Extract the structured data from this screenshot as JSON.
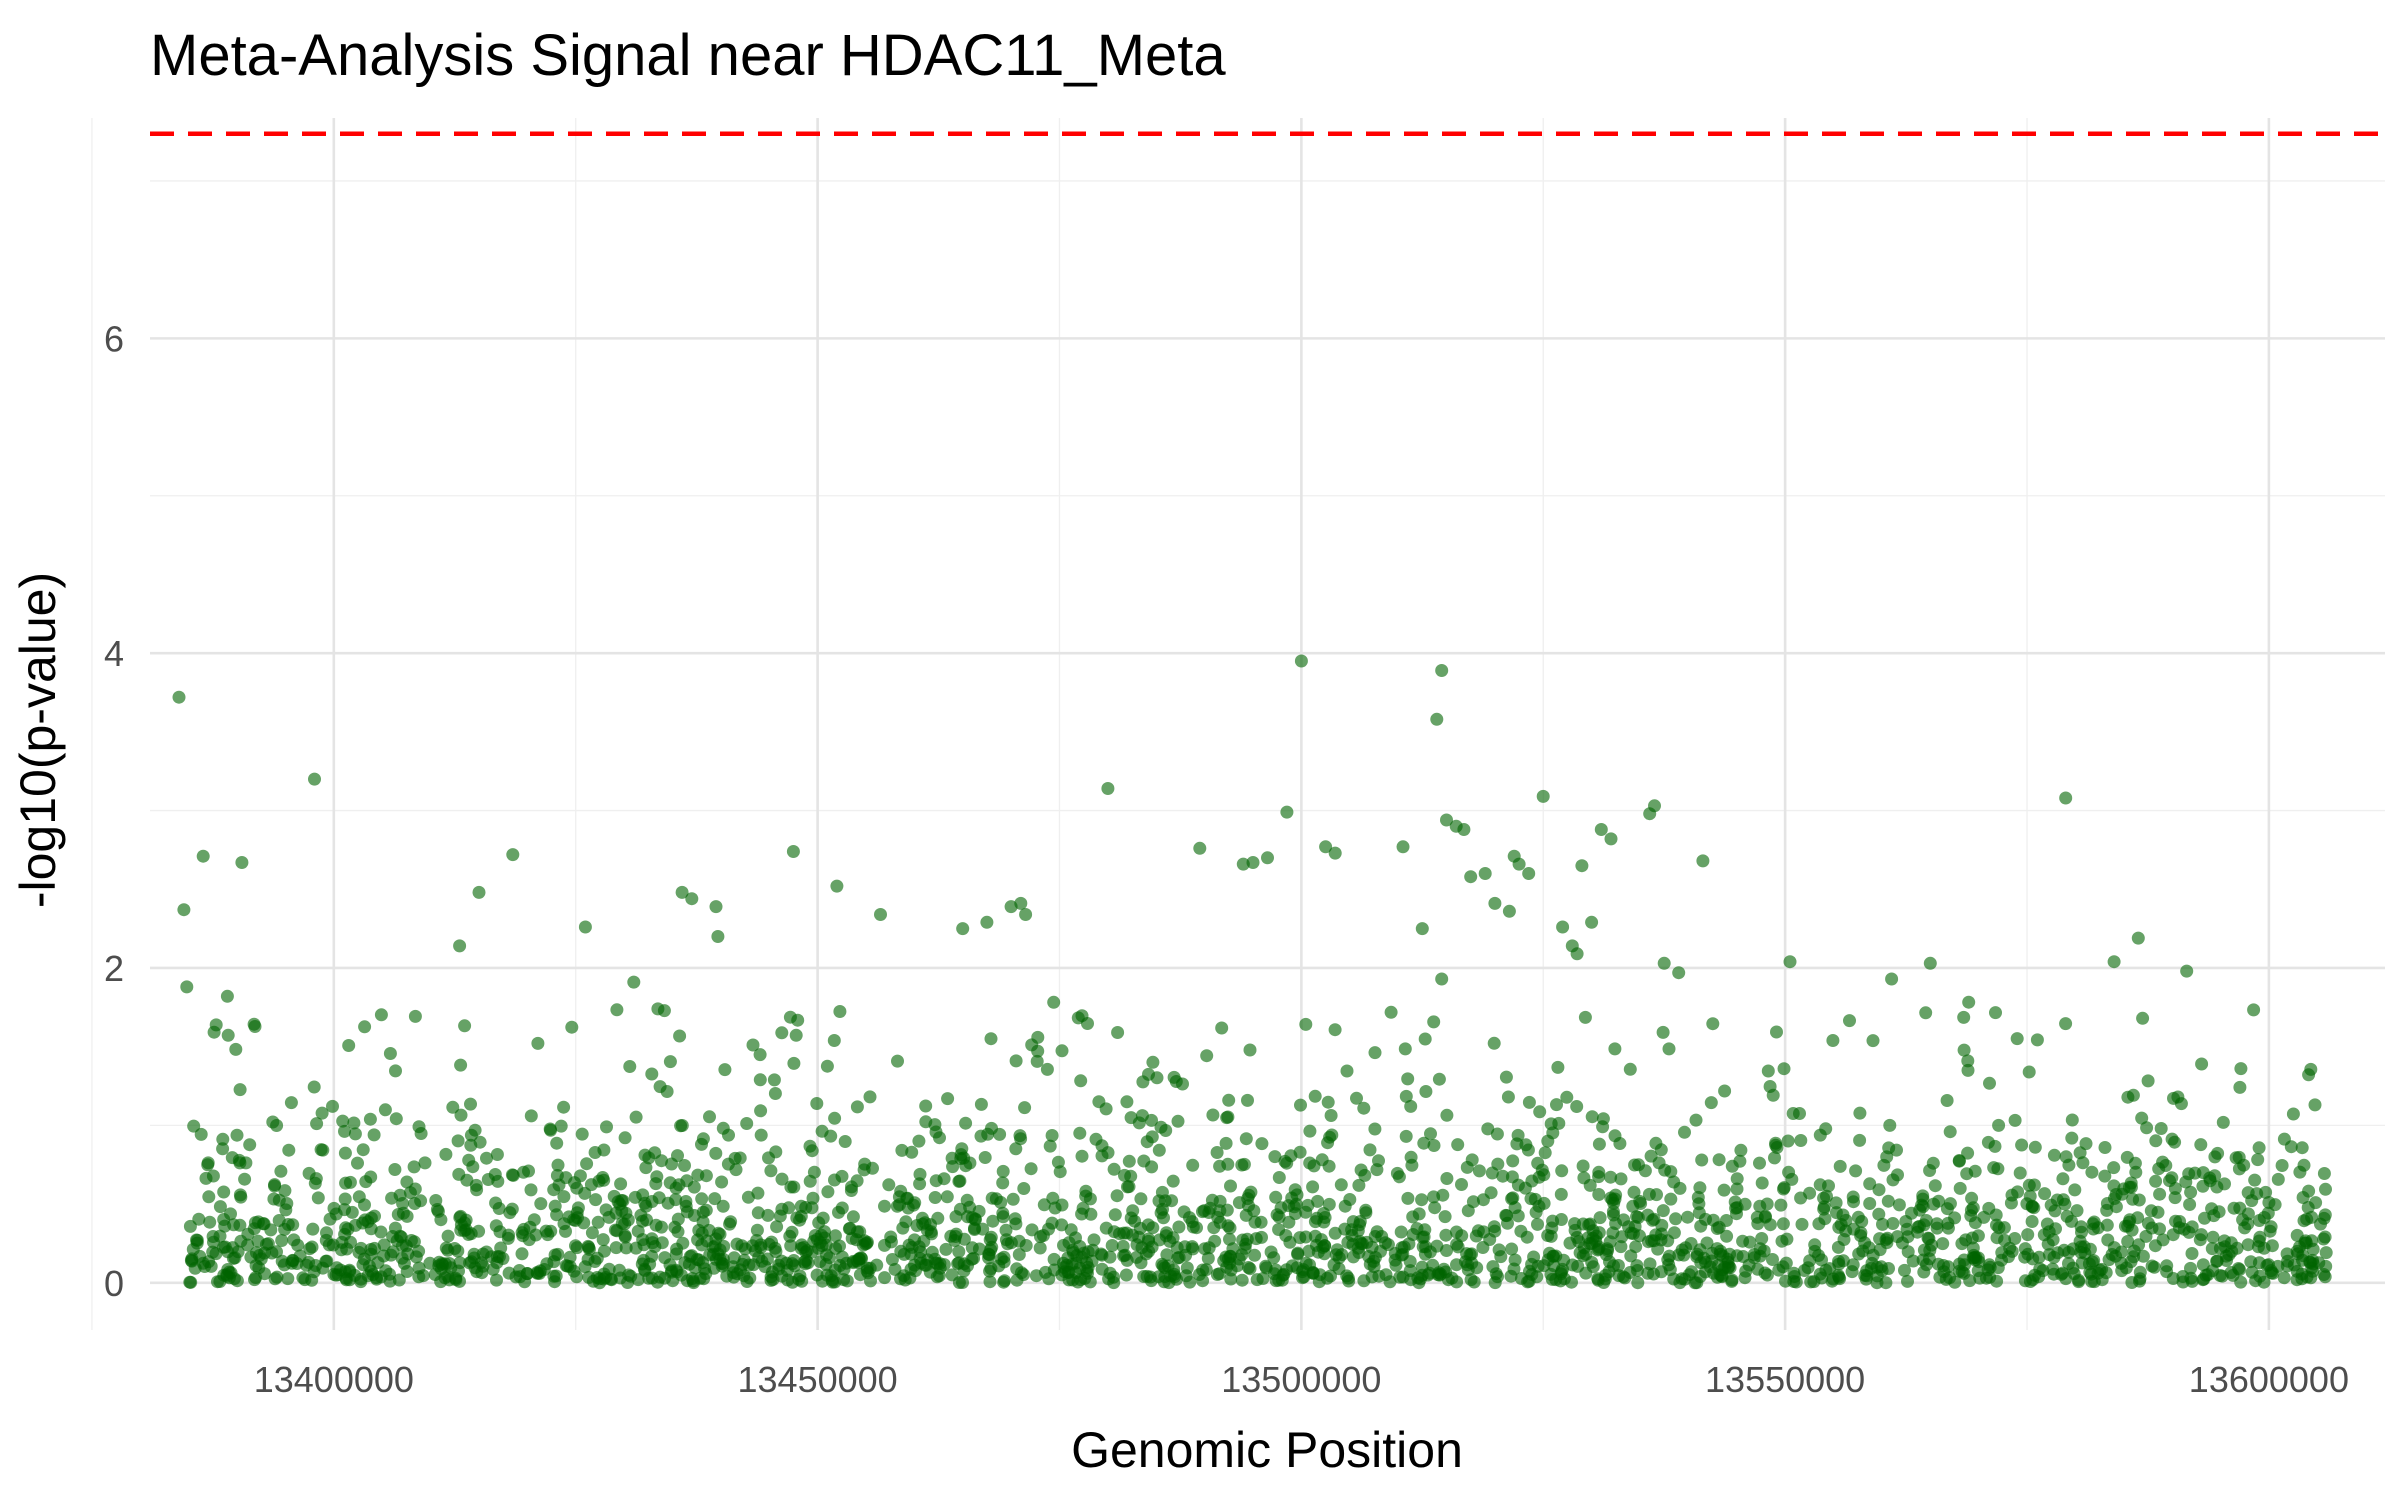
{
  "chart_data": {
    "type": "scatter",
    "title": "Meta-Analysis Signal near HDAC11_Meta",
    "xlabel": "Genomic Position",
    "ylabel": "-log10(p-value)",
    "xlim": [
      13381000,
      13612000
    ],
    "ylim": [
      -0.3,
      7.4
    ],
    "x_ticks": [
      13400000,
      13450000,
      13500000,
      13550000,
      13600000
    ],
    "x_tick_labels": [
      "13400000",
      "13450000",
      "13500000",
      "13550000",
      "13600000"
    ],
    "y_ticks": [
      0,
      2,
      4,
      6
    ],
    "y_tick_labels": [
      "0",
      "2",
      "4",
      "6"
    ],
    "grid": true,
    "legend": "none",
    "significance_threshold": {
      "value": 7.3,
      "color": "#ff0000",
      "style": "dashed"
    },
    "point_color": "#006400",
    "point_opacity": 0.6,
    "snp_range": [
      13385000,
      13606000
    ],
    "n_points_background": 2400,
    "highlighted_points": [
      [
        13384000,
        3.72
      ],
      [
        13384500,
        2.37
      ],
      [
        13386500,
        2.71
      ],
      [
        13390500,
        2.67
      ],
      [
        13384800,
        1.88
      ],
      [
        13389000,
        1.82
      ],
      [
        13398000,
        3.2
      ],
      [
        13418500,
        2.72
      ],
      [
        13415000,
        2.48
      ],
      [
        13413000,
        2.14
      ],
      [
        13426000,
        2.26
      ],
      [
        13436000,
        2.48
      ],
      [
        13437000,
        2.44
      ],
      [
        13439500,
        2.39
      ],
      [
        13439700,
        2.2
      ],
      [
        13431000,
        1.91
      ],
      [
        13447500,
        2.74
      ],
      [
        13452000,
        2.52
      ],
      [
        13456500,
        2.34
      ],
      [
        13465000,
        2.25
      ],
      [
        13467500,
        2.29
      ],
      [
        13470000,
        2.39
      ],
      [
        13471000,
        2.41
      ],
      [
        13471500,
        2.34
      ],
      [
        13480000,
        3.14
      ],
      [
        13489500,
        2.76
      ],
      [
        13494000,
        2.66
      ],
      [
        13495000,
        2.67
      ],
      [
        13496500,
        2.7
      ],
      [
        13498500,
        2.99
      ],
      [
        13500000,
        3.95
      ],
      [
        13502500,
        2.77
      ],
      [
        13503500,
        2.73
      ],
      [
        13510500,
        2.77
      ],
      [
        13512500,
        2.25
      ],
      [
        13514000,
        3.58
      ],
      [
        13514500,
        3.89
      ],
      [
        13515000,
        2.94
      ],
      [
        13516000,
        2.9
      ],
      [
        13516800,
        2.88
      ],
      [
        13517500,
        2.58
      ],
      [
        13519000,
        2.6
      ],
      [
        13520000,
        2.41
      ],
      [
        13521500,
        2.36
      ],
      [
        13522000,
        2.71
      ],
      [
        13522500,
        2.66
      ],
      [
        13523500,
        2.6
      ],
      [
        13525000,
        3.09
      ],
      [
        13527000,
        2.26
      ],
      [
        13528000,
        2.14
      ],
      [
        13528500,
        2.09
      ],
      [
        13529000,
        2.65
      ],
      [
        13530000,
        2.29
      ],
      [
        13531000,
        2.88
      ],
      [
        13532000,
        2.82
      ],
      [
        13536000,
        2.98
      ],
      [
        13536500,
        3.03
      ],
      [
        13541500,
        2.68
      ],
      [
        13537500,
        2.03
      ],
      [
        13539000,
        1.97
      ],
      [
        13550500,
        2.04
      ],
      [
        13579000,
        3.08
      ],
      [
        13584000,
        2.04
      ],
      [
        13586500,
        2.19
      ],
      [
        13591500,
        1.98
      ],
      [
        13514500,
        1.93
      ],
      [
        13561000,
        1.93
      ],
      [
        13565000,
        2.03
      ]
    ]
  }
}
